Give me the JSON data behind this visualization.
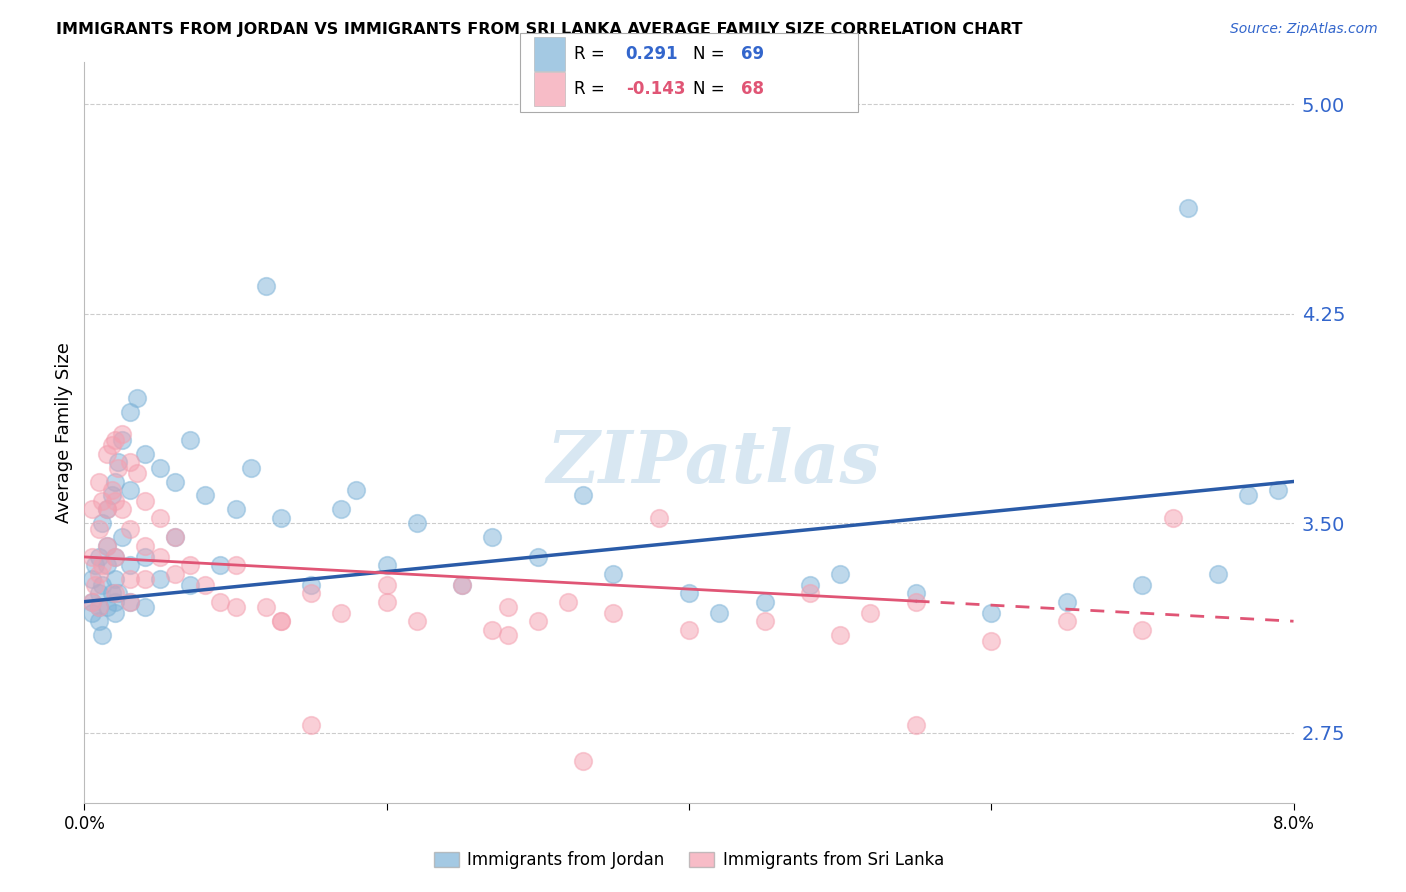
{
  "title": "IMMIGRANTS FROM JORDAN VS IMMIGRANTS FROM SRI LANKA AVERAGE FAMILY SIZE CORRELATION CHART",
  "source": "Source: ZipAtlas.com",
  "ylabel": "Average Family Size",
  "x_min": 0.0,
  "x_max": 0.08,
  "y_min": 2.5,
  "y_max": 5.15,
  "right_yticks": [
    5.0,
    4.25,
    3.5,
    2.75
  ],
  "x_ticks": [
    0.0,
    0.02,
    0.04,
    0.06,
    0.08
  ],
  "x_tick_labels": [
    "0.0%",
    "",
    "",
    "",
    "8.0%"
  ],
  "jordan_color": "#7EB3D8",
  "sri_lanka_color": "#F4A0B0",
  "jordan_line_color": "#2A5BA8",
  "sri_lanka_line_color": "#E05575",
  "jordan_R": "0.291",
  "jordan_N": "69",
  "sri_lanka_R": "-0.143",
  "sri_lanka_N": "68",
  "jordan_label": "Immigrants from Jordan",
  "sri_lanka_label": "Immigrants from Sri Lanka",
  "watermark": "ZIPatlas",
  "background_color": "#ffffff",
  "jordan_line_x0": 0.0,
  "jordan_line_y0": 3.22,
  "jordan_line_x1": 0.08,
  "jordan_line_y1": 3.65,
  "sri_line_x0": 0.0,
  "sri_line_y0": 3.38,
  "sri_line_x1": 0.08,
  "sri_line_y1": 3.15,
  "sri_line_solid_x1": 0.055,
  "jordan_points_x": [
    0.0005,
    0.0005,
    0.0005,
    0.0007,
    0.001,
    0.001,
    0.001,
    0.001,
    0.0012,
    0.0012,
    0.0012,
    0.0015,
    0.0015,
    0.0015,
    0.0015,
    0.0018,
    0.0018,
    0.002,
    0.002,
    0.002,
    0.002,
    0.002,
    0.0022,
    0.0022,
    0.0025,
    0.0025,
    0.003,
    0.003,
    0.003,
    0.003,
    0.0035,
    0.004,
    0.004,
    0.004,
    0.005,
    0.005,
    0.006,
    0.006,
    0.007,
    0.007,
    0.008,
    0.009,
    0.01,
    0.011,
    0.012,
    0.013,
    0.015,
    0.017,
    0.018,
    0.02,
    0.022,
    0.025,
    0.027,
    0.03,
    0.033,
    0.035,
    0.04,
    0.042,
    0.045,
    0.048,
    0.05,
    0.055,
    0.06,
    0.065,
    0.07,
    0.073,
    0.075,
    0.077,
    0.079
  ],
  "jordan_points_y": [
    3.22,
    3.3,
    3.18,
    3.35,
    3.25,
    3.15,
    3.38,
    3.2,
    3.5,
    3.28,
    3.1,
    3.55,
    3.35,
    3.2,
    3.42,
    3.6,
    3.25,
    3.65,
    3.38,
    3.22,
    3.18,
    3.3,
    3.72,
    3.25,
    3.8,
    3.45,
    3.9,
    3.62,
    3.35,
    3.22,
    3.95,
    3.75,
    3.38,
    3.2,
    3.7,
    3.3,
    3.65,
    3.45,
    3.8,
    3.28,
    3.6,
    3.35,
    3.55,
    3.7,
    4.35,
    3.52,
    3.28,
    3.55,
    3.62,
    3.35,
    3.5,
    3.28,
    3.45,
    3.38,
    3.6,
    3.32,
    3.25,
    3.18,
    3.22,
    3.28,
    3.32,
    3.25,
    3.18,
    3.22,
    3.28,
    4.63,
    3.32,
    3.6,
    3.62
  ],
  "sri_lanka_points_x": [
    0.0005,
    0.0005,
    0.0005,
    0.0007,
    0.001,
    0.001,
    0.001,
    0.001,
    0.0012,
    0.0012,
    0.0015,
    0.0015,
    0.0015,
    0.0018,
    0.0018,
    0.002,
    0.002,
    0.002,
    0.002,
    0.0022,
    0.0025,
    0.0025,
    0.003,
    0.003,
    0.003,
    0.003,
    0.0035,
    0.004,
    0.004,
    0.004,
    0.005,
    0.005,
    0.006,
    0.006,
    0.007,
    0.008,
    0.009,
    0.01,
    0.012,
    0.013,
    0.015,
    0.017,
    0.02,
    0.022,
    0.025,
    0.027,
    0.028,
    0.03,
    0.032,
    0.035,
    0.04,
    0.045,
    0.05,
    0.055,
    0.06,
    0.065,
    0.07,
    0.072,
    0.048,
    0.052,
    0.055,
    0.033,
    0.028,
    0.038,
    0.02,
    0.015,
    0.013,
    0.01
  ],
  "sri_lanka_points_y": [
    3.38,
    3.55,
    3.22,
    3.28,
    3.48,
    3.65,
    3.32,
    3.2,
    3.58,
    3.35,
    3.75,
    3.55,
    3.42,
    3.78,
    3.62,
    3.8,
    3.58,
    3.38,
    3.25,
    3.7,
    3.82,
    3.55,
    3.72,
    3.48,
    3.3,
    3.22,
    3.68,
    3.58,
    3.42,
    3.3,
    3.52,
    3.38,
    3.45,
    3.32,
    3.35,
    3.28,
    3.22,
    3.35,
    3.2,
    3.15,
    3.25,
    3.18,
    3.22,
    3.15,
    3.28,
    3.12,
    3.2,
    3.15,
    3.22,
    3.18,
    3.12,
    3.15,
    3.1,
    3.22,
    3.08,
    3.15,
    3.12,
    3.52,
    3.25,
    3.18,
    2.78,
    2.65,
    3.1,
    3.52,
    3.28,
    2.78,
    3.15,
    3.2
  ]
}
